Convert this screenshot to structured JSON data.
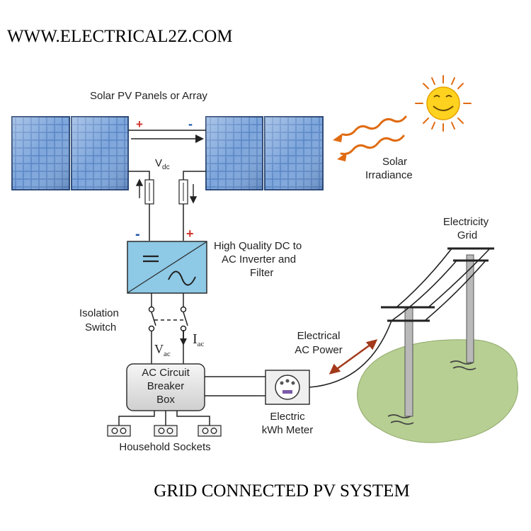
{
  "website": "WWW.ELECTRICAL2Z.COM",
  "caption": "GRID CONNECTED PV SYSTEM",
  "labels": {
    "panels": "Solar PV Panels or Array",
    "plus_top": "+",
    "minus_top": "-",
    "vdc_main": "V",
    "vdc_sub": "dc",
    "solar_line1": "Solar",
    "solar_line2": "Irradiance",
    "grid_line1": "Electricity",
    "grid_line2": "Grid",
    "minus_inv": "-",
    "plus_inv": "+",
    "inverter_line1": "High Quality DC to",
    "inverter_line2": "AC Inverter and",
    "inverter_line3": "Filter",
    "isolation_line1": "Isolation",
    "isolation_line2": "Switch",
    "iac_main": "I",
    "iac_sub": "ac",
    "vac_main": "V",
    "vac_sub": "ac",
    "power_line1": "Electrical",
    "power_line2": "AC Power",
    "breaker_line1": "AC Circuit",
    "breaker_line2": "Breaker",
    "breaker_line3": "Box",
    "meter_line1": "Electric",
    "meter_line2": "kWh Meter",
    "sockets": "Household Sockets"
  },
  "colors": {
    "panel_cell": "#5a86c4",
    "panel_frame": "#2c4a78",
    "inverter_fill": "#8ec9e6",
    "breaker_fill": "#e0e0e0",
    "ground_fill": "#b7cf92",
    "sun_fill": "#ffd21f",
    "sun_rays": "#e06b12",
    "polarity_plus": "#d0342c",
    "polarity_minus": "#1c56a8",
    "power_arrow": "#a33a1b"
  },
  "icons": [
    "sun-icon",
    "sine-wave-icon",
    "kwh-meter-icon",
    "socket-icon",
    "fuse-icon",
    "switch-icon",
    "utility-pole-icon"
  ]
}
